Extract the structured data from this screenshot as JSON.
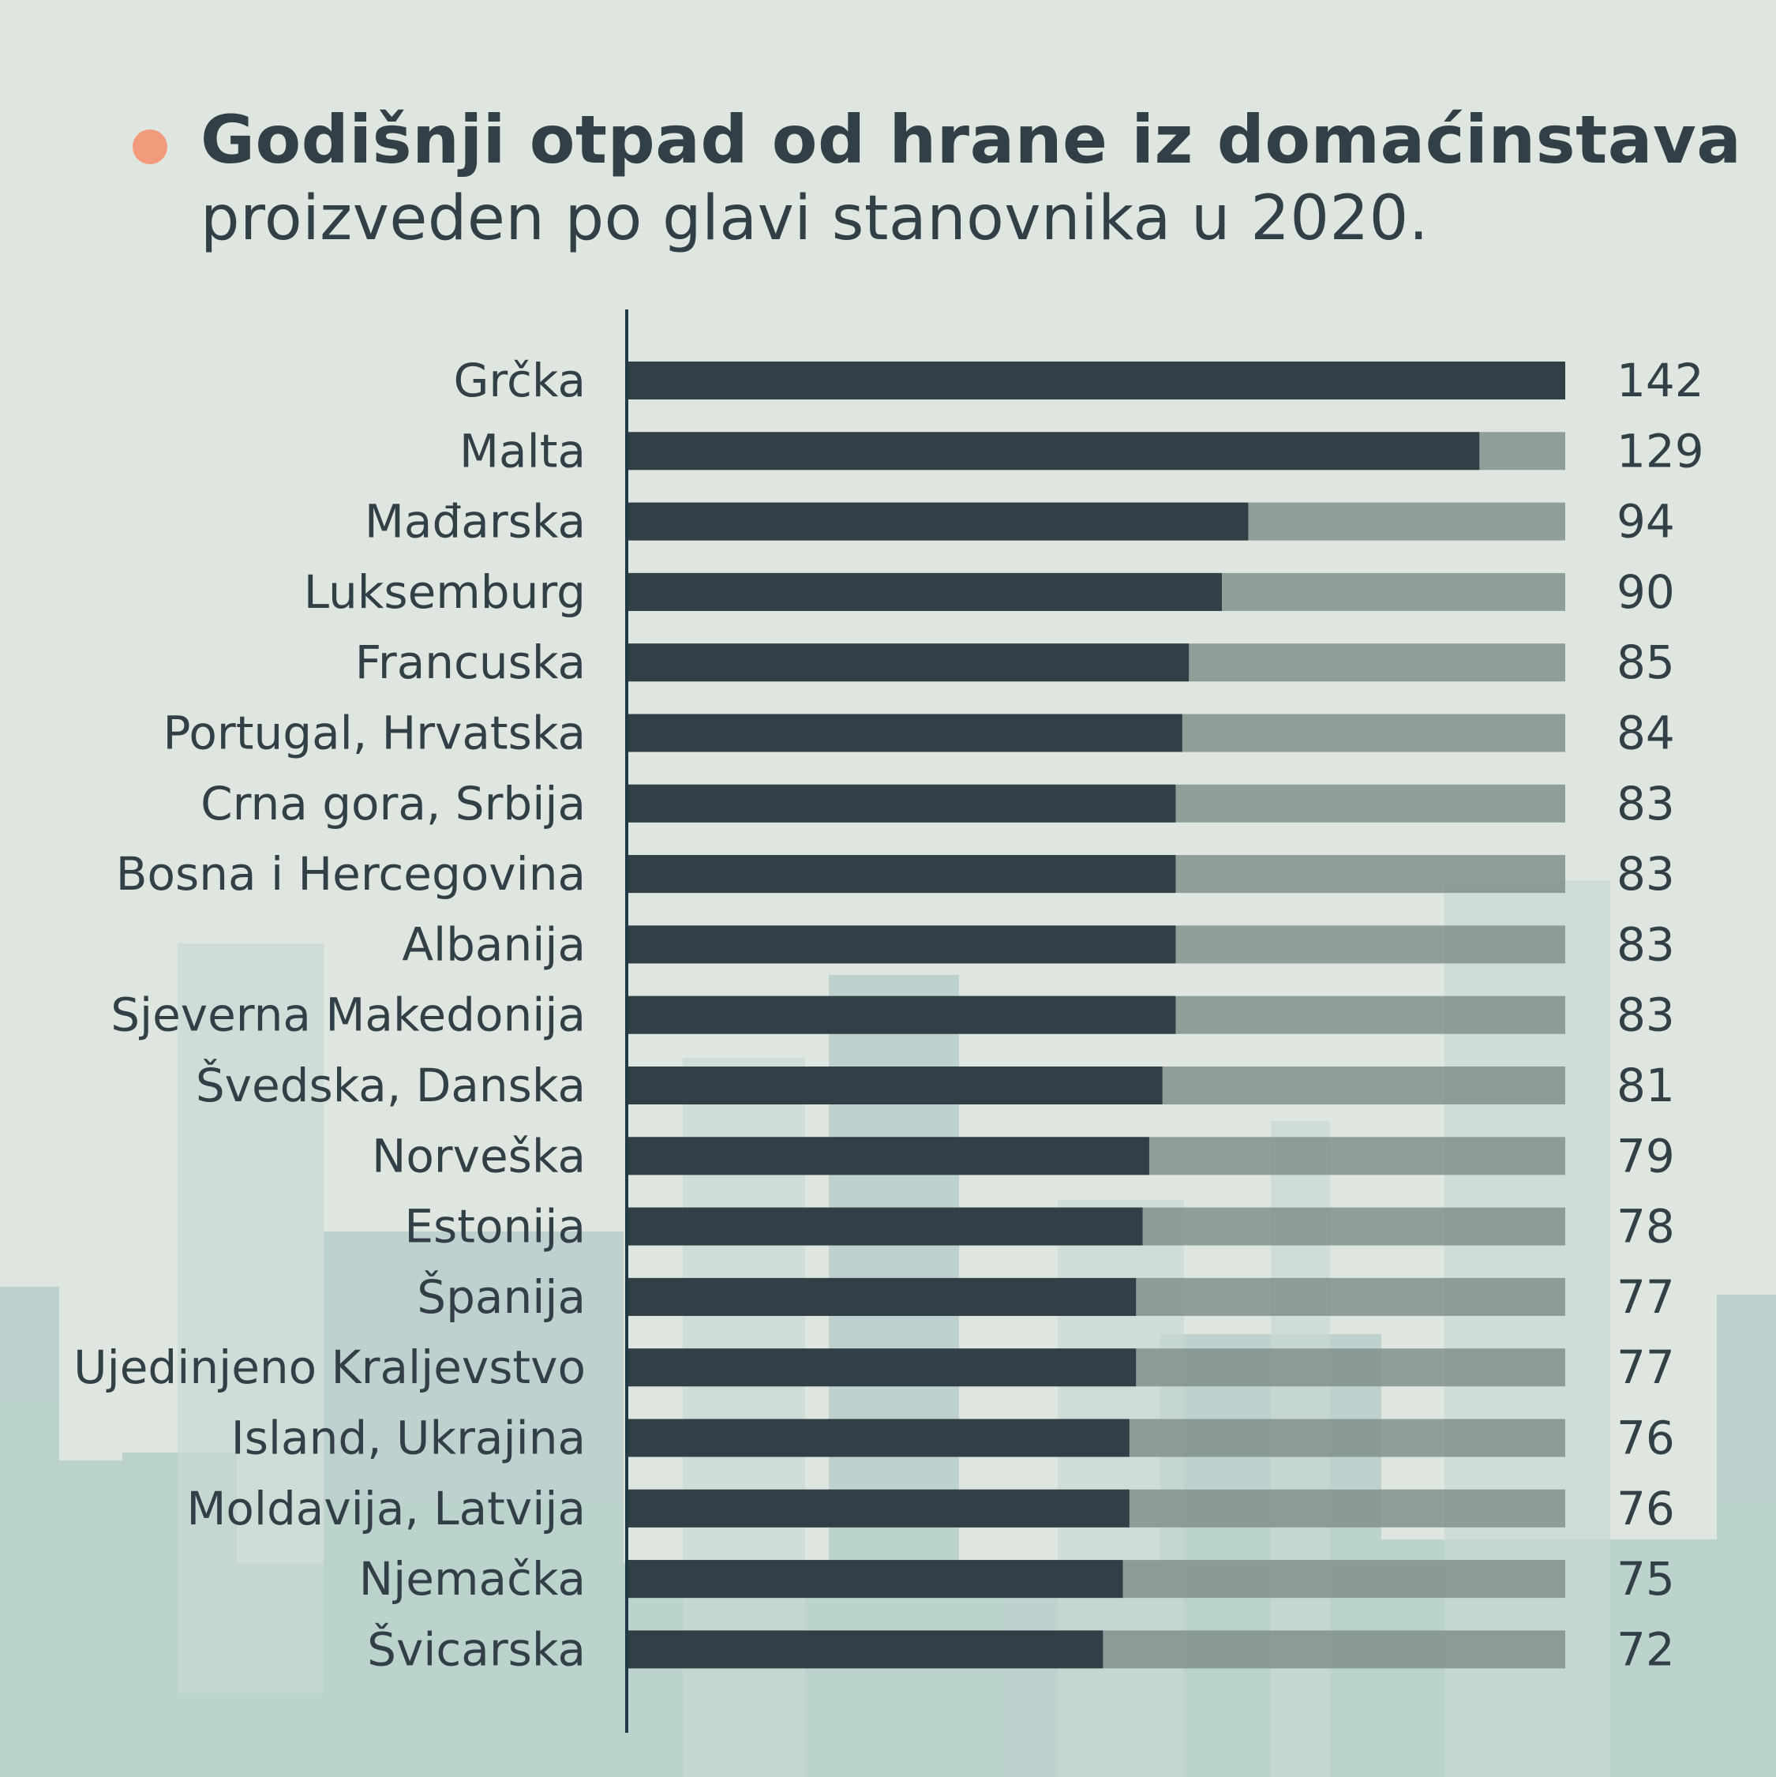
{
  "header": {
    "title": "Godišnji otpad od hrane iz domaćinstava",
    "subtitle": "proizveden po glavi stanovnika u 2020."
  },
  "colors": {
    "bar": "#323f47",
    "track": "#7f8d8a",
    "accent_dot": "#f19b7c",
    "background": "#dfe5df",
    "skyline": "#b7cfcb"
  },
  "chart_data": {
    "type": "bar",
    "orientation": "horizontal",
    "categories": [
      "Grčka",
      "Malta",
      "Mađarska",
      "Luksemburg",
      "Francuska",
      "Portugal, Hrvatska",
      "Crna gora, Srbija",
      "Bosna i Hercegovina",
      "Albanija",
      "Sjeverna Makedonija",
      "Švedska, Danska",
      "Norveška",
      "Estonija",
      "Španija",
      "Ujedinjeno Kraljevstvo",
      "Island, Ukrajina",
      "Moldavija, Latvija",
      "Njemačka",
      "Švicarska"
    ],
    "values": [
      142,
      129,
      94,
      90,
      85,
      84,
      83,
      83,
      83,
      83,
      81,
      79,
      78,
      77,
      77,
      76,
      76,
      75,
      72
    ],
    "xlim": [
      0,
      142
    ],
    "grid": false,
    "legend": "none"
  }
}
